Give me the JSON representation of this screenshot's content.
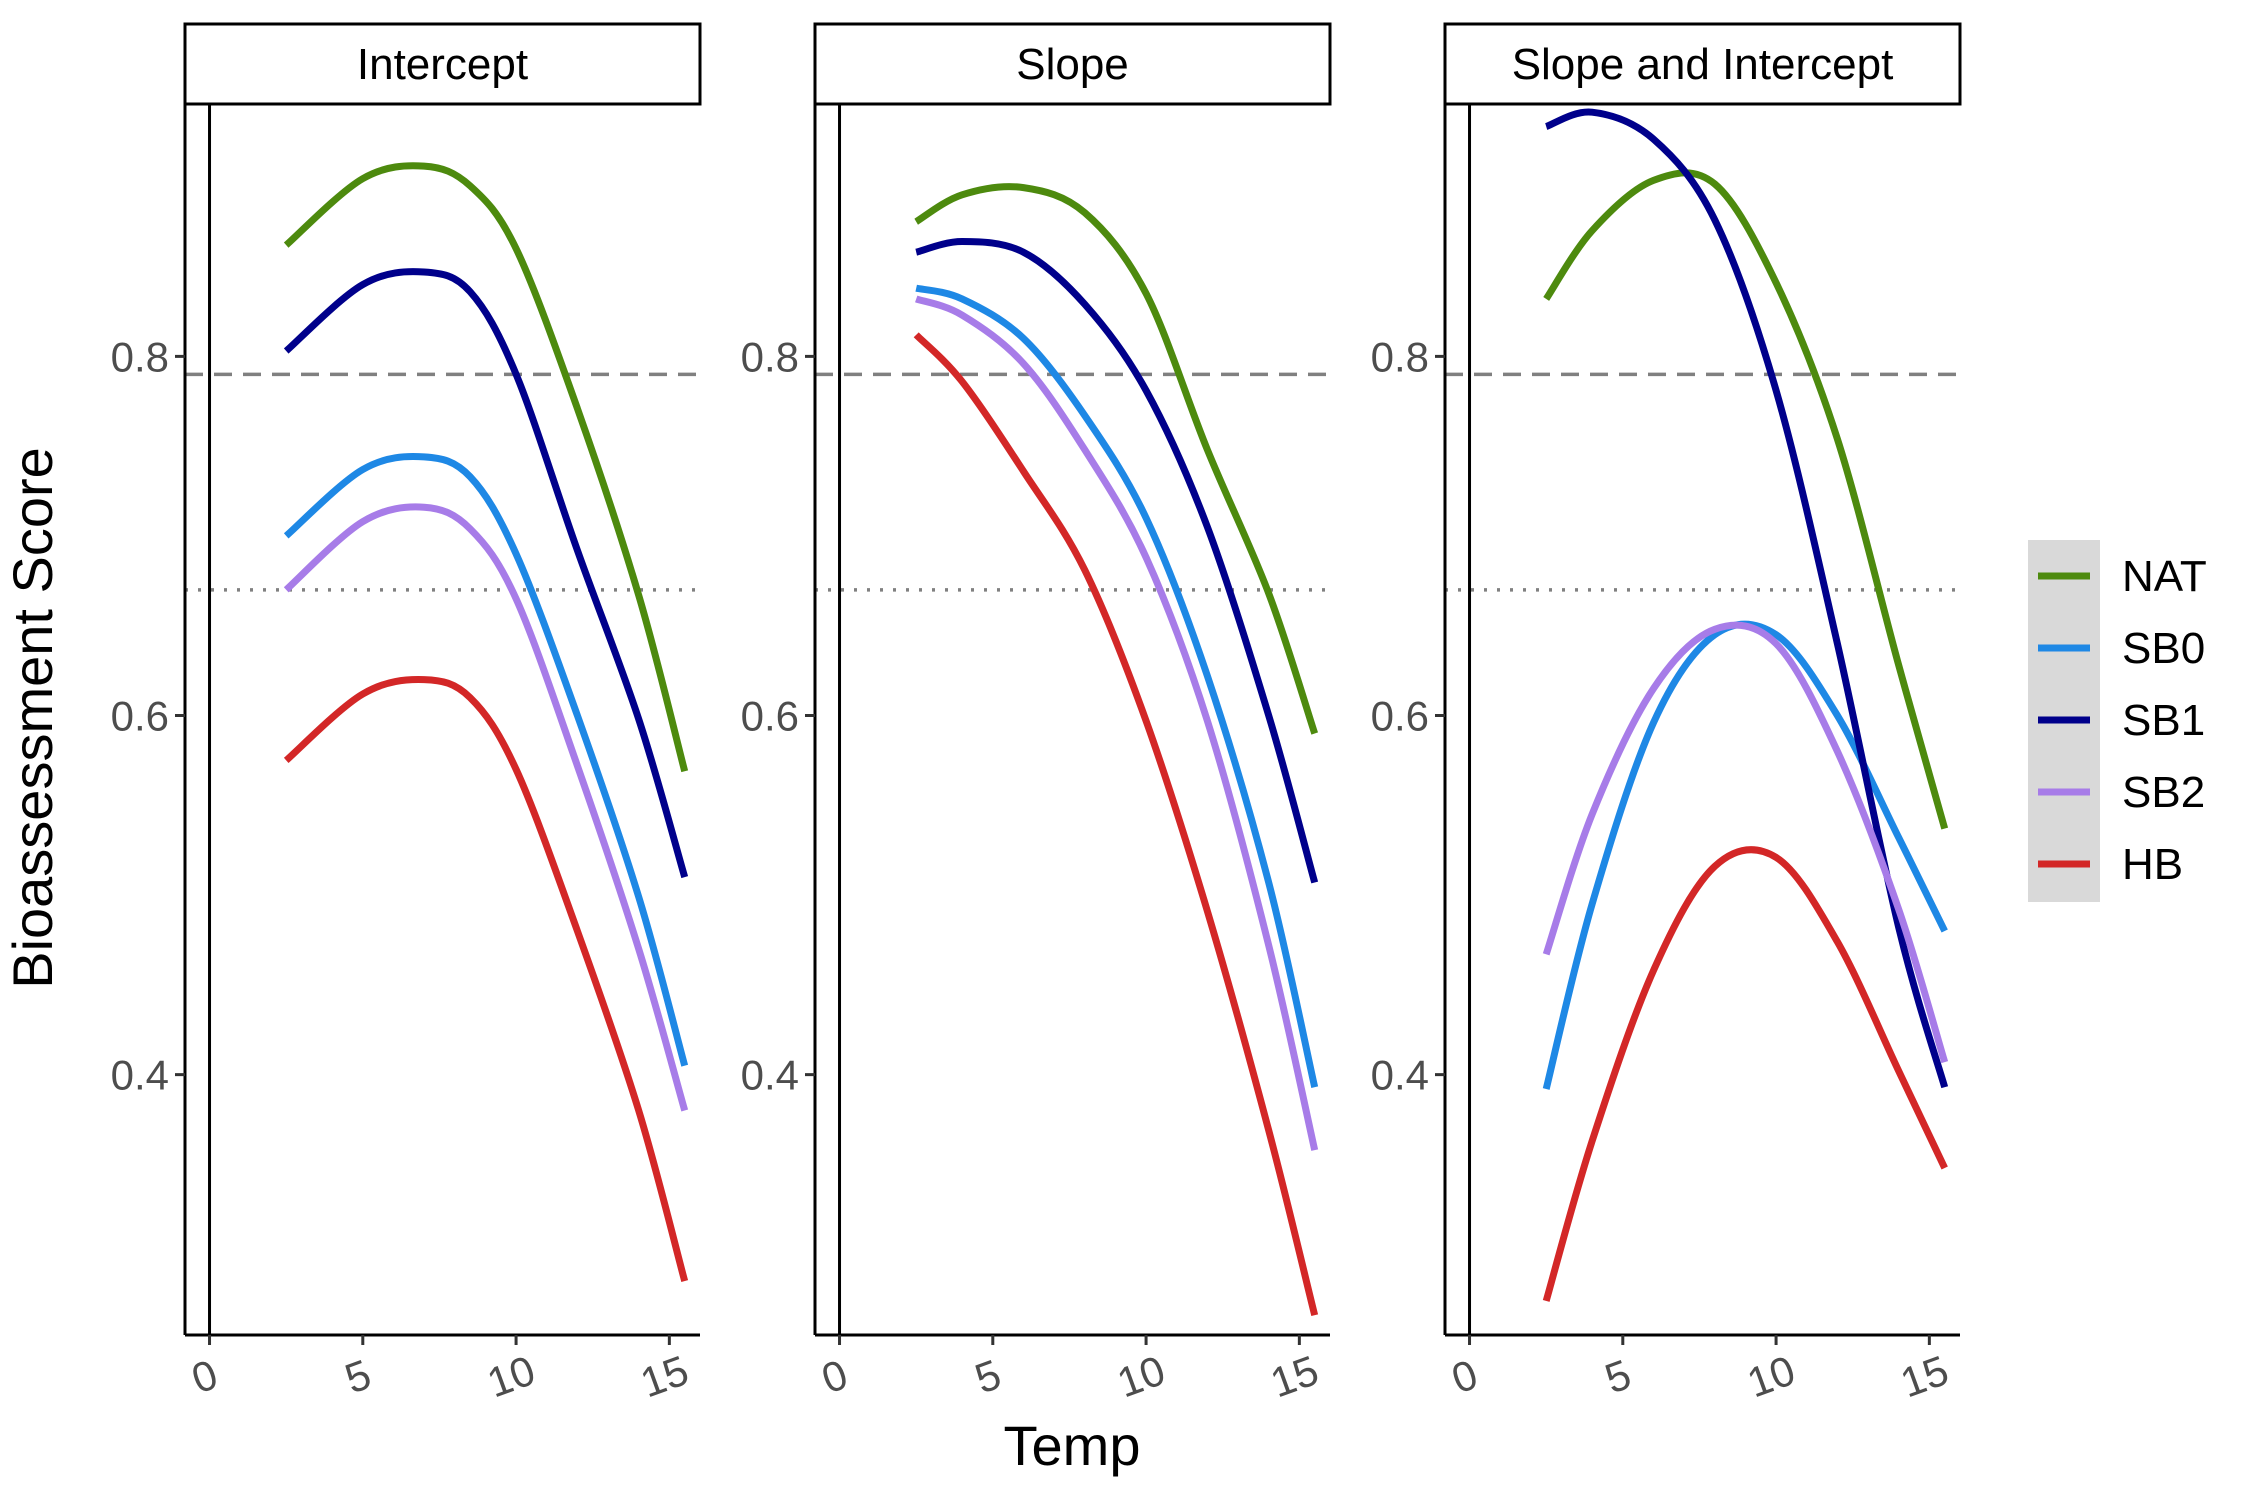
{
  "chart_data": {
    "type": "line",
    "xlabel": "Temp",
    "ylabel": "Bioassessment Score",
    "grid": false,
    "legend_position": "right",
    "series_colors": {
      "NAT": "#4d8a0e",
      "SB0": "#1e88e5",
      "SB1": "#00008b",
      "SB2": "#a77ce8",
      "HB": "#d32727"
    },
    "legend": [
      "NAT",
      "SB0",
      "SB1",
      "SB2",
      "HB"
    ],
    "reference_lines": {
      "dashed": 0.79,
      "dotted": 0.67
    },
    "panels": [
      {
        "title": "Intercept",
        "xlim": [
          -0.8,
          16
        ],
        "ylim": [
          0.255,
          0.94
        ],
        "x_ticks": [
          "0",
          "5",
          "10",
          "15"
        ],
        "y_ticks": [
          "0.4",
          "0.6",
          "0.8"
        ],
        "x": [
          2.5,
          5,
          7,
          8.5,
          10,
          12,
          14,
          15.5
        ],
        "series": [
          {
            "name": "NAT",
            "values": [
              0.862,
              0.899,
              0.906,
              0.895,
              0.86,
              0.771,
              0.667,
              0.569
            ]
          },
          {
            "name": "SB0",
            "values": [
              0.7,
              0.737,
              0.744,
              0.733,
              0.69,
              0.6,
              0.499,
              0.405
            ]
          },
          {
            "name": "SB1",
            "values": [
              0.803,
              0.84,
              0.847,
              0.836,
              0.79,
              0.692,
              0.598,
              0.51
            ]
          },
          {
            "name": "SB2",
            "values": [
              0.67,
              0.708,
              0.716,
              0.704,
              0.665,
              0.572,
              0.47,
              0.38
            ]
          },
          {
            "name": "HB",
            "values": [
              0.575,
              0.612,
              0.62,
              0.61,
              0.57,
              0.48,
              0.38,
              0.285
            ]
          }
        ]
      },
      {
        "title": "Slope",
        "xlim": [
          -0.8,
          16
        ],
        "ylim": [
          0.255,
          0.94
        ],
        "x_ticks": [
          "0",
          "5",
          "10",
          "15"
        ],
        "y_ticks": [
          "0.4",
          "0.6",
          "0.8"
        ],
        "x": [
          2.5,
          4,
          6,
          8,
          10,
          12,
          14,
          15.5
        ],
        "series": [
          {
            "name": "NAT",
            "values": [
              0.875,
              0.89,
              0.894,
              0.88,
              0.835,
              0.748,
              0.668,
              0.59
            ]
          },
          {
            "name": "SB0",
            "values": [
              0.838,
              0.832,
              0.81,
              0.767,
              0.71,
              0.622,
              0.507,
              0.393
            ]
          },
          {
            "name": "SB1",
            "values": [
              0.858,
              0.864,
              0.858,
              0.829,
              0.781,
              0.705,
              0.6,
              0.507
            ]
          },
          {
            "name": "SB2",
            "values": [
              0.832,
              0.823,
              0.796,
              0.748,
              0.688,
              0.597,
              0.472,
              0.358
            ]
          },
          {
            "name": "HB",
            "values": [
              0.812,
              0.786,
              0.736,
              0.681,
              0.597,
              0.491,
              0.369,
              0.266
            ]
          }
        ]
      },
      {
        "title": "Slope and Intercept",
        "xlim": [
          -0.8,
          16
        ],
        "ylim": [
          0.255,
          0.94
        ],
        "x_ticks": [
          "0",
          "5",
          "10",
          "15"
        ],
        "y_ticks": [
          "0.4",
          "0.6",
          "0.8"
        ],
        "x": [
          2.5,
          4,
          6,
          8,
          10,
          12,
          14,
          15.5
        ],
        "series": [
          {
            "name": "NAT",
            "values": [
              0.832,
              0.87,
              0.898,
              0.896,
              0.841,
              0.754,
              0.628,
              0.537
            ]
          },
          {
            "name": "SB0",
            "values": [
              0.392,
              0.495,
              0.596,
              0.645,
              0.645,
              0.6,
              0.532,
              0.48
            ]
          },
          {
            "name": "SB1",
            "values": [
              0.928,
              0.936,
              0.921,
              0.876,
              0.781,
              0.64,
              0.482,
              0.393
            ]
          },
          {
            "name": "SB2",
            "values": [
              0.467,
              0.545,
              0.615,
              0.648,
              0.64,
              0.58,
              0.492,
              0.407
            ]
          },
          {
            "name": "HB",
            "values": [
              0.274,
              0.363,
              0.458,
              0.516,
              0.521,
              0.474,
              0.402,
              0.348
            ]
          }
        ]
      }
    ]
  }
}
